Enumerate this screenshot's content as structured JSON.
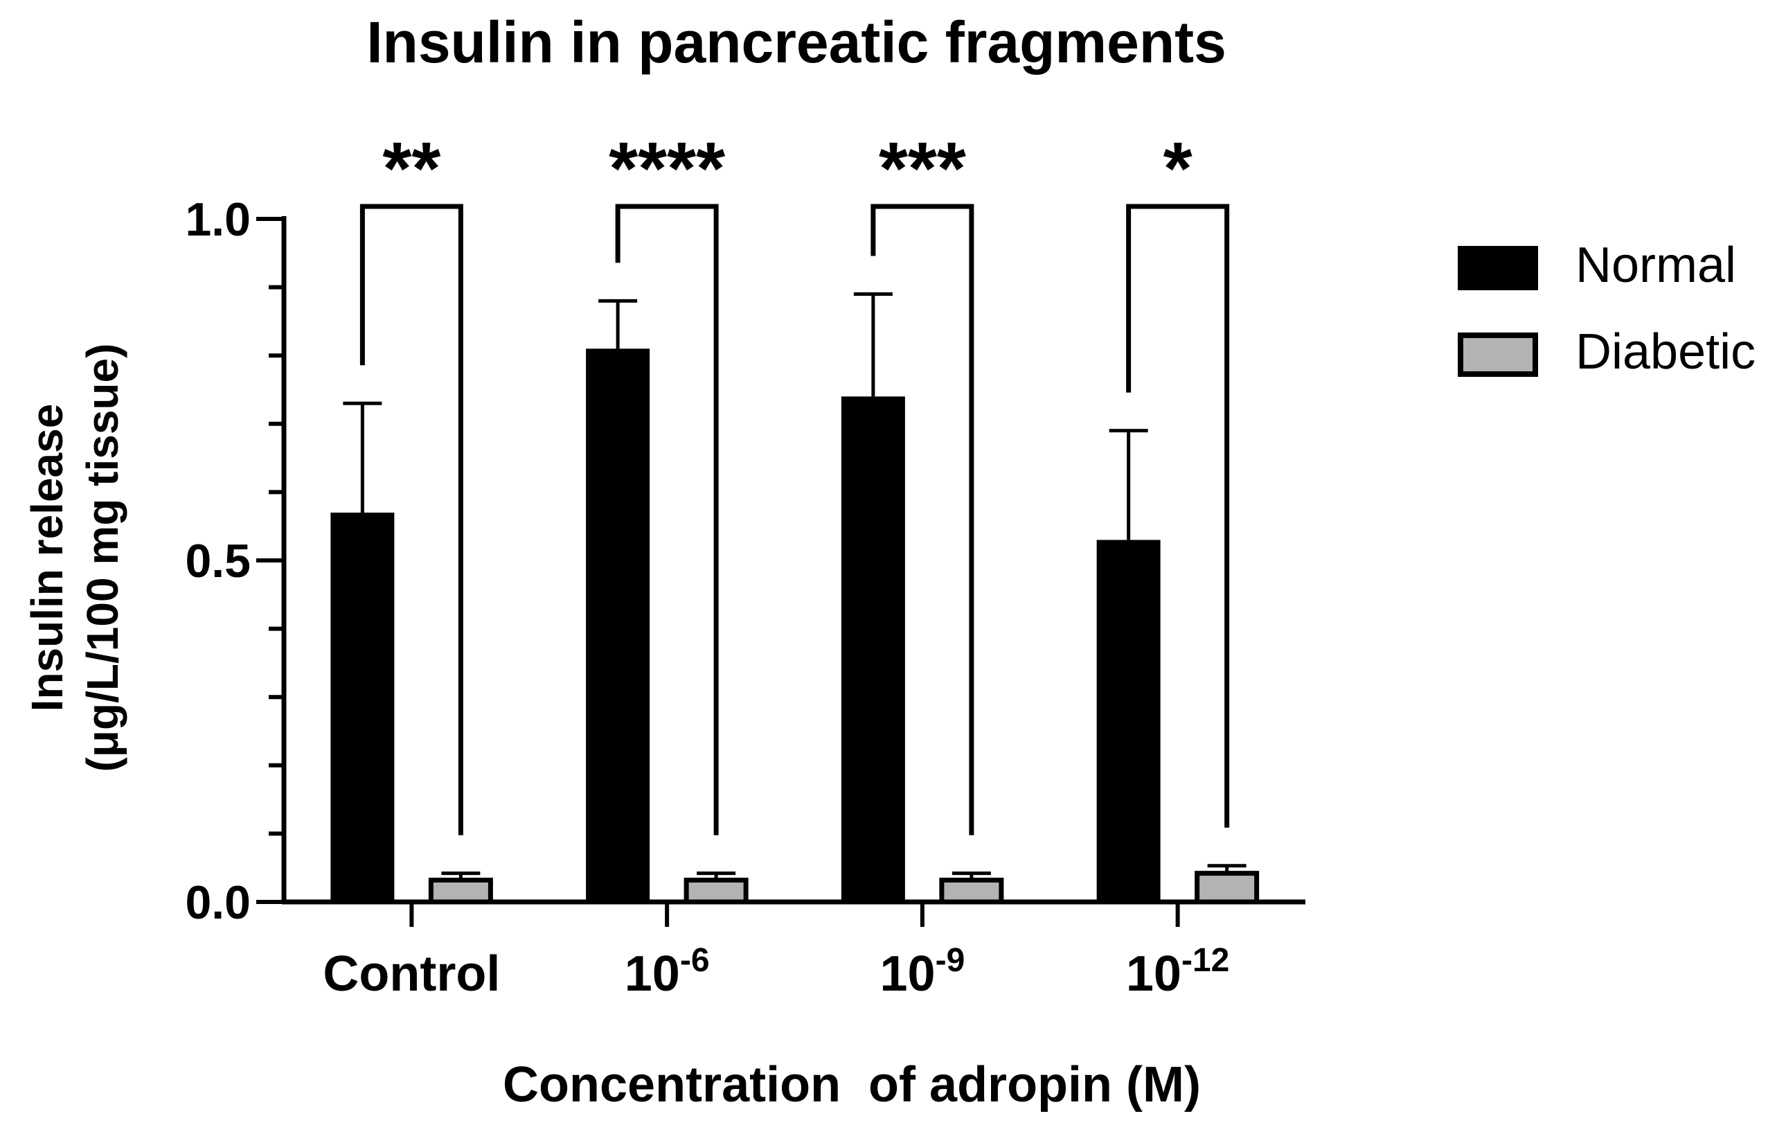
{
  "chart_data": {
    "type": "bar",
    "title": "Insulin in pancreatic fragments",
    "xlabel": "Concentration  of adropin (M)",
    "ylabel_lines": [
      "Insulin release",
      "(μg/L/100 mg tissue)"
    ],
    "ylim": [
      0,
      1.0
    ],
    "yticks": [
      {
        "value": 0.0,
        "label": "0.0"
      },
      {
        "value": 0.5,
        "label": "0.5"
      },
      {
        "value": 1.0,
        "label": "1.0"
      }
    ],
    "categories": [
      {
        "base": "Control",
        "exp": ""
      },
      {
        "base": "10",
        "exp": "-6"
      },
      {
        "base": "10",
        "exp": "-9"
      },
      {
        "base": "10",
        "exp": "-12"
      }
    ],
    "series": [
      {
        "name": "Normal",
        "color": "#000000",
        "values": [
          0.57,
          0.81,
          0.74,
          0.53
        ],
        "errors": [
          0.16,
          0.07,
          0.15,
          0.16
        ]
      },
      {
        "name": "Diabetic",
        "color": "#b3b3b3",
        "values": [
          0.035,
          0.035,
          0.035,
          0.045
        ],
        "errors": [
          0.007,
          0.007,
          0.007,
          0.008
        ]
      }
    ],
    "significance": [
      "**",
      "****",
      "***",
      "*"
    ],
    "legend": {
      "position": "right"
    },
    "grid": false
  }
}
